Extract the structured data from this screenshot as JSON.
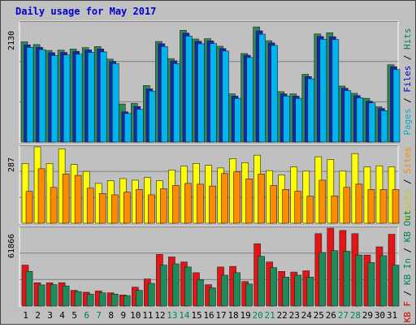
{
  "chart_data": {
    "type": "bar",
    "title": "Daily usage for May 2017",
    "categories": [
      "1",
      "2",
      "3",
      "4",
      "5",
      "6",
      "7",
      "8",
      "9",
      "10",
      "11",
      "12",
      "13",
      "14",
      "15",
      "16",
      "17",
      "18",
      "19",
      "20",
      "21",
      "22",
      "23",
      "24",
      "25",
      "26",
      "27",
      "28",
      "29",
      "30",
      "31"
    ],
    "weekend_days": [
      "6",
      "7",
      "13",
      "14",
      "20",
      "21",
      "27",
      "28"
    ],
    "panels": [
      {
        "id": "hits-files-pages",
        "max_label": "2130",
        "ylim": [
          0,
          2130
        ],
        "right_labels": [
          "Pages",
          "Files",
          "Hits"
        ],
        "label_colors": [
          "#00AACC",
          "#0000CC",
          "#00805C"
        ],
        "series": [
          {
            "name": "Hits",
            "color": "#2E8B57",
            "values": [
              1790,
              1740,
              1635,
              1640,
              1660,
              1685,
              1705,
              1480,
              680,
              690,
              1010,
              1795,
              1490,
              1995,
              1840,
              1845,
              1710,
              860,
              1580,
              2055,
              1810,
              900,
              860,
              1210,
              1930,
              1950,
              1000,
              870,
              780,
              630,
              1380
            ]
          },
          {
            "name": "Files",
            "color": "#1428B4",
            "values": [
              1735,
              1690,
              1595,
              1600,
              1620,
              1645,
              1660,
              1440,
              540,
              635,
              950,
              1755,
              1450,
              1945,
              1800,
              1805,
              1670,
              820,
              1550,
              1985,
              1770,
              860,
              820,
              1170,
              1885,
              1880,
              960,
              830,
              730,
              600,
              1345
            ]
          },
          {
            "name": "Pages",
            "color": "#00B4F0",
            "values": [
              1690,
              1650,
              1545,
              1555,
              1570,
              1600,
              1610,
              1400,
              510,
              585,
              910,
              1705,
              1400,
              1890,
              1755,
              1760,
              1625,
              780,
              1510,
              1925,
              1725,
              820,
              780,
              1130,
              1835,
              1830,
              920,
              790,
              700,
              560,
              1295
            ]
          }
        ]
      },
      {
        "id": "visits-sites",
        "max_label": "287",
        "ylim": [
          0,
          287
        ],
        "right_labels": [
          "Visits",
          "Sites"
        ],
        "label_colors": [
          "#CCCC00",
          "#FF8800"
        ],
        "series": [
          {
            "name": "Visits",
            "color": "#FFFF00",
            "values": [
              225,
              287,
              225,
              280,
              221,
              195,
              150,
              160,
              168,
              162,
              172,
              160,
              200,
              215,
              225,
              218,
              208,
              243,
              228,
              256,
              198,
              182,
              212,
              196,
              250,
              240,
              196,
              262,
              212,
              216,
              212
            ]
          },
          {
            "name": "Sites",
            "color": "#FF8C00",
            "values": [
              120,
              205,
              135,
              185,
              180,
              132,
              112,
              107,
              117,
              127,
              107,
              130,
              142,
              150,
              147,
              140,
              187,
              194,
              167,
              185,
              142,
              127,
              120,
              102,
              162,
              103,
              135,
              147,
              127,
              127,
              127
            ]
          }
        ]
      },
      {
        "id": "kb-in-out",
        "max_label": "61866",
        "ylim": [
          0,
          61866
        ],
        "right_labels": [
          "KB F",
          "KB In",
          "KB Out"
        ],
        "label_colors": [
          "#CC0000",
          "#00805C",
          "#00805C"
        ],
        "series": [
          {
            "name": "KB F",
            "color": "#E61414",
            "values": [
              32500,
              18500,
              18500,
              18500,
              12500,
              11000,
              12000,
              10500,
              8800,
              15000,
              21500,
              41000,
              39000,
              35000,
              26500,
              17000,
              31000,
              31500,
              19500,
              49500,
              35000,
              27500,
              27000,
              28000,
              57500,
              61866,
              60000,
              57500,
              40500,
              47000,
              57000
            ]
          },
          {
            "name": "KB Out",
            "color": "#1E8C5A",
            "values": [
              27500,
              16800,
              17000,
              16000,
              11500,
              9500,
              10500,
              9500,
              8300,
              12500,
              18000,
              32500,
              33500,
              31000,
              21000,
              14500,
              24500,
              26500,
              17500,
              39500,
              30500,
              23000,
              24500,
              23000,
              42500,
              44000,
              43500,
              40500,
              34500,
              40000,
              32500
            ]
          }
        ]
      }
    ]
  }
}
